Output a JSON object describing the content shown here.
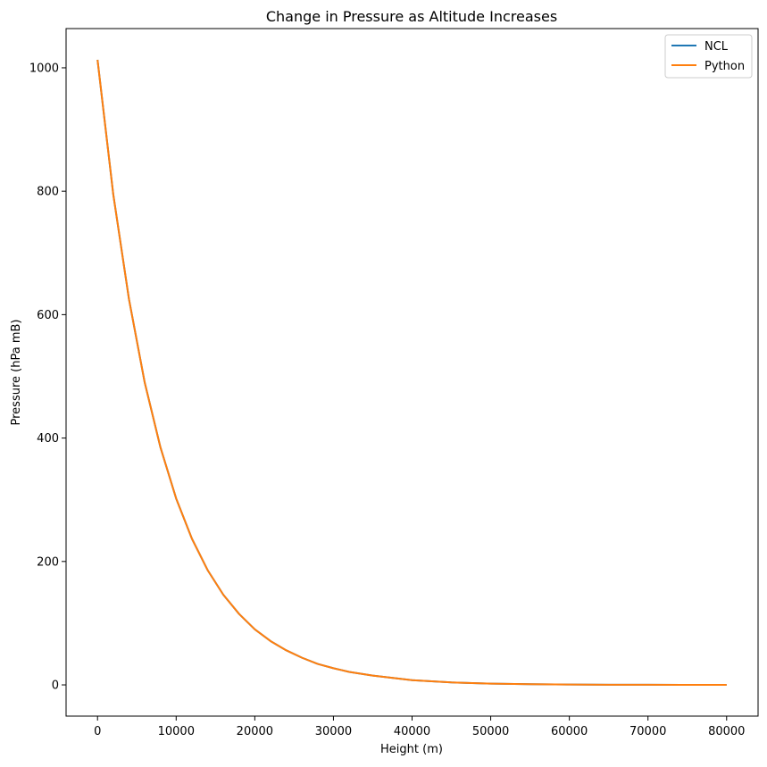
{
  "chart_data": {
    "type": "line",
    "title": "Change in Pressure as Altitude Increases",
    "xlabel": "Height (m)",
    "ylabel": "Pressure (hPa mB)",
    "xlim": [
      -4000,
      84000
    ],
    "ylim": [
      -50.6,
      1063.6
    ],
    "xticks": [
      0,
      10000,
      20000,
      30000,
      40000,
      50000,
      60000,
      70000,
      80000
    ],
    "yticks": [
      0,
      200,
      400,
      600,
      800,
      1000
    ],
    "grid": false,
    "legend_position": "top-right",
    "series": [
      {
        "name": "NCL",
        "color": "#1f77b4",
        "x": [
          0,
          2000,
          4000,
          6000,
          8000,
          10000,
          12000,
          14000,
          16000,
          18000,
          20000,
          22000,
          24000,
          26000,
          28000,
          30000,
          32000,
          35000,
          40000,
          45000,
          50000,
          55000,
          60000,
          65000,
          70000,
          75000,
          80000
        ],
        "y": [
          1013,
          795,
          625,
          490,
          385,
          302,
          237,
          186,
          146,
          115,
          90,
          71,
          56,
          44,
          34,
          27,
          21,
          15,
          7.7,
          4,
          2,
          1.1,
          0.6,
          0.3,
          0.15,
          0.08,
          0.04
        ]
      },
      {
        "name": "Python",
        "color": "#ff7f0e",
        "x": [
          0,
          2000,
          4000,
          6000,
          8000,
          10000,
          12000,
          14000,
          16000,
          18000,
          20000,
          22000,
          24000,
          26000,
          28000,
          30000,
          32000,
          35000,
          40000,
          45000,
          50000,
          55000,
          60000,
          65000,
          70000,
          75000,
          80000
        ],
        "y": [
          1013,
          795,
          625,
          490,
          385,
          302,
          237,
          186,
          146,
          115,
          90,
          71,
          56,
          44,
          34,
          27,
          21,
          15,
          7.7,
          4,
          2,
          1.1,
          0.6,
          0.3,
          0.15,
          0.08,
          0.04
        ]
      }
    ]
  }
}
